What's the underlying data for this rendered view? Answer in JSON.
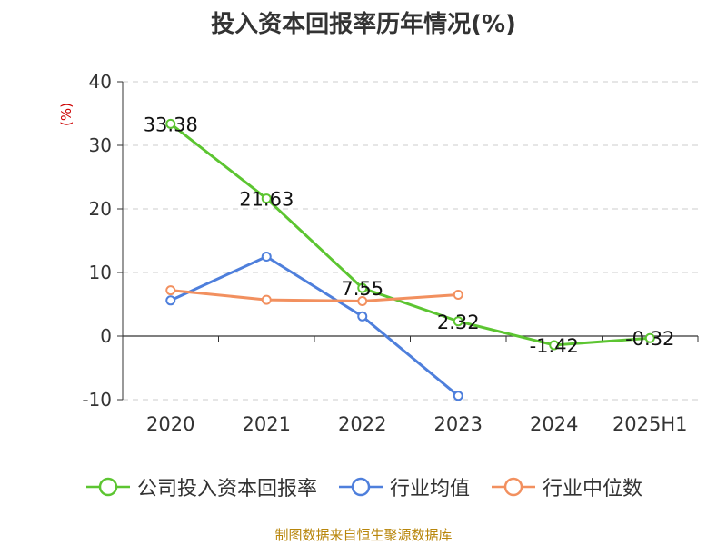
{
  "title": "投入资本回报率历年情况(%)",
  "source": "制图数据来自恒生聚源数据库",
  "chart_data": {
    "type": "line",
    "title": "投入资本回报率历年情况(%)",
    "ylabel": "(%)",
    "xlabel": "",
    "categories": [
      "2020",
      "2021",
      "2022",
      "2023",
      "2024",
      "2025H1"
    ],
    "ylim": [
      -10,
      40
    ],
    "yticks": [
      "40",
      "30",
      "20",
      "10",
      "0",
      "-10"
    ],
    "grid": true,
    "legend_position": "bottom",
    "series": [
      {
        "name": "公司投入资本回报率",
        "color": "#5cc531",
        "values": [
          33.38,
          21.63,
          7.55,
          2.32,
          -1.42,
          -0.32
        ],
        "labels": [
          "33.38",
          "21.63",
          "7.55",
          "2.32",
          "-1.42",
          "-0.32"
        ]
      },
      {
        "name": "行业均值",
        "color": "#4e7fdc",
        "values": [
          5.6,
          12.5,
          3.1,
          -9.4,
          null,
          null
        ]
      },
      {
        "name": "行业中位数",
        "color": "#f2905f",
        "values": [
          7.2,
          5.7,
          5.5,
          6.5,
          null,
          null
        ]
      }
    ]
  }
}
